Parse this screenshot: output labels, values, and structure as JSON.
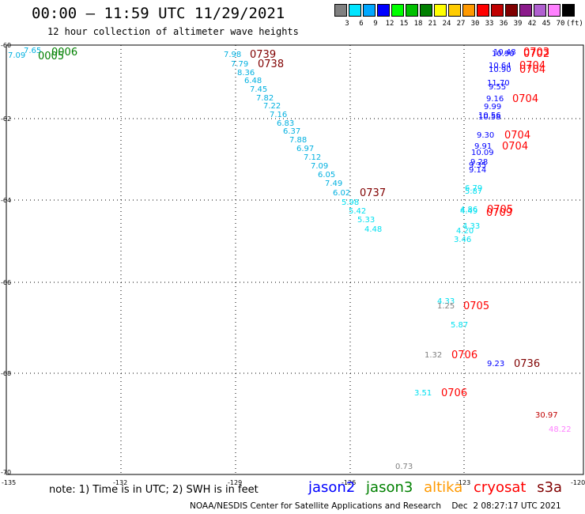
{
  "header": {
    "title": "00:00 — 11:59 UTC 11/29/2021",
    "subtitle": "12 hour collection of altimeter wave heights"
  },
  "colorbar": {
    "colors": [
      "#808080",
      "#00e5ff",
      "#00a8ff",
      "#0000ff",
      "#00ff00",
      "#00c000",
      "#008000",
      "#ffff00",
      "#ffcc00",
      "#ff9900",
      "#ff0000",
      "#c00000",
      "#800000",
      "#8b1a8b",
      "#b060d0",
      "#ff80ff",
      "#000000"
    ],
    "labels": [
      "3",
      "6",
      "9",
      "12",
      "15",
      "18",
      "21",
      "24",
      "27",
      "30",
      "33",
      "36",
      "39",
      "42",
      "45",
      "70",
      "(ft)"
    ]
  },
  "map": {
    "lon_ticks": [
      "-135",
      "-132",
      "-129",
      "-126",
      "-123",
      "-120"
    ],
    "lat_ticks": [
      "-60",
      "-62",
      "-64",
      "-66",
      "-68",
      "-70"
    ]
  },
  "colors": {
    "jason2": "#0000ff",
    "jason3": "#008000",
    "altika": "#ff9900",
    "cryosat": "#ff0000",
    "s3a": "#800000"
  },
  "obs": [
    {
      "t": "7.65",
      "c": "#00b0e0"
    },
    {
      "t": "7.09",
      "c": "#00b0e0"
    },
    {
      "t": "0006",
      "c": "#008000"
    },
    {
      "t": "0005",
      "c": "#008000"
    },
    {
      "t": "7.98",
      "c": "#00b0e0"
    },
    {
      "t": "0739",
      "c": "#800000"
    },
    {
      "t": "7.79",
      "c": "#00b0e0"
    },
    {
      "t": "0738",
      "c": "#800000"
    },
    {
      "t": "8.36",
      "c": "#00b0e0"
    },
    {
      "t": "6.48",
      "c": "#00b0e0"
    },
    {
      "t": "7.45",
      "c": "#00b0e0"
    },
    {
      "t": "7.82",
      "c": "#00b0e0"
    },
    {
      "t": "7.22",
      "c": "#00b0e0"
    },
    {
      "t": "7.16",
      "c": "#00b0e0"
    },
    {
      "t": "6.83",
      "c": "#00b0e0"
    },
    {
      "t": "6.37",
      "c": "#00b0e0"
    },
    {
      "t": "7.88",
      "c": "#00b0e0"
    },
    {
      "t": "6.97",
      "c": "#00b0e0"
    },
    {
      "t": "7.12",
      "c": "#00b0e0"
    },
    {
      "t": "7.09",
      "c": "#00b0e0"
    },
    {
      "t": "6.05",
      "c": "#00b0e0"
    },
    {
      "t": "7.49",
      "c": "#00b0e0"
    },
    {
      "t": "6.02",
      "c": "#00b0e0"
    },
    {
      "t": "0737",
      "c": "#800000"
    },
    {
      "t": "5.98",
      "c": "#00e0f0"
    },
    {
      "t": "5.42",
      "c": "#00e0f0"
    },
    {
      "t": "5.33",
      "c": "#00e0f0"
    },
    {
      "t": "4.48",
      "c": "#00e0f0"
    },
    {
      "t": "10.48",
      "c": "#0000ff"
    },
    {
      "t": "10.90",
      "c": "#0000ff"
    },
    {
      "t": "0703",
      "c": "#ff0000"
    },
    {
      "t": "0702",
      "c": "#ff0000"
    },
    {
      "t": "10.64",
      "c": "#0000ff"
    },
    {
      "t": "0704",
      "c": "#ff0000"
    },
    {
      "t": "10.90",
      "c": "#0000ff"
    },
    {
      "t": "0704",
      "c": "#ff0000"
    },
    {
      "t": "11.70",
      "c": "#0000ff"
    },
    {
      "t": "9.55",
      "c": "#0000ff"
    },
    {
      "t": "9.16",
      "c": "#0000ff"
    },
    {
      "t": "0704",
      "c": "#ff0000"
    },
    {
      "t": "9.99",
      "c": "#0000ff"
    },
    {
      "t": "10.56",
      "c": "#0000ff"
    },
    {
      "t": "10.58",
      "c": "#0000ff"
    },
    {
      "t": "9.30",
      "c": "#0000ff"
    },
    {
      "t": "0704",
      "c": "#ff0000"
    },
    {
      "t": "9.91",
      "c": "#0000ff"
    },
    {
      "t": "0704",
      "c": "#ff0000"
    },
    {
      "t": "10.09",
      "c": "#0000ff"
    },
    {
      "t": "9.28",
      "c": "#0000ff"
    },
    {
      "t": "9.35",
      "c": "#0000ff"
    },
    {
      "t": "9.14",
      "c": "#0000ff"
    },
    {
      "t": "6.79",
      "c": "#00e0f0"
    },
    {
      "t": "5.87",
      "c": "#00e0f0"
    },
    {
      "t": "4.86",
      "c": "#00e0f0"
    },
    {
      "t": "4.49",
      "c": "#00e0f0"
    },
    {
      "t": "0705",
      "c": "#ff0000"
    },
    {
      "t": "0709",
      "c": "#ff0000"
    },
    {
      "t": "4.33",
      "c": "#00e0f0"
    },
    {
      "t": "4.20",
      "c": "#00e0f0"
    },
    {
      "t": "3.46",
      "c": "#00e0f0"
    },
    {
      "t": "4.33",
      "c": "#00e0f0"
    },
    {
      "t": "1.25",
      "c": "#808080"
    },
    {
      "t": "0705",
      "c": "#ff0000"
    },
    {
      "t": "5.87",
      "c": "#00e0f0"
    },
    {
      "t": "1.32",
      "c": "#808080"
    },
    {
      "t": "0706",
      "c": "#ff0000"
    },
    {
      "t": "9.23",
      "c": "#0000ff"
    },
    {
      "t": "0736",
      "c": "#800000"
    },
    {
      "t": "3.51",
      "c": "#00e0f0"
    },
    {
      "t": "0706",
      "c": "#ff0000"
    },
    {
      "t": "30.97",
      "c": "#c00000"
    },
    {
      "t": "48.22",
      "c": "#ff80ff"
    },
    {
      "t": "0.73",
      "c": "#808080"
    }
  ],
  "footer": {
    "note": "note: 1) Time is in UTC; 2) SWH is in feet",
    "sat_jason2": "jason2",
    "sat_jason3": "jason3",
    "sat_altika": "altika",
    "sat_cryosat": "cryosat",
    "sat_s3a": "s3a",
    "credit": "NOAA/NESDIS Center for Satellite Applications and Research    Dec  2 08:27:17 UTC 2021"
  }
}
